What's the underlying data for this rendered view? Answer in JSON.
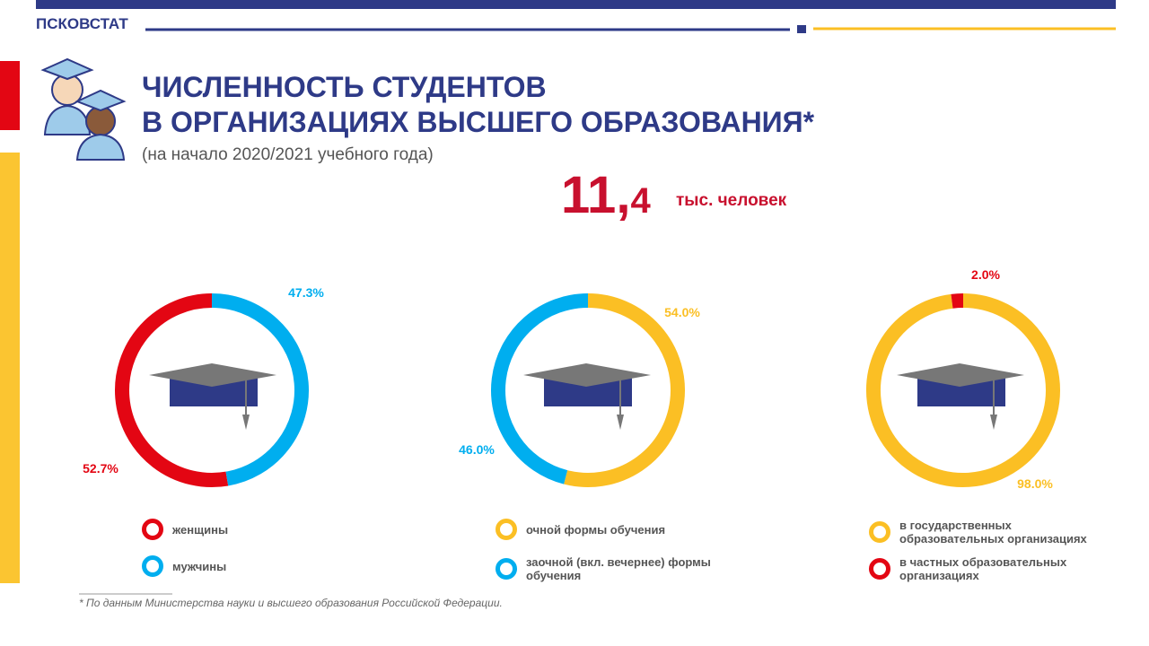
{
  "header": {
    "org": "ПСКОВСТАТ"
  },
  "title": [
    "ЧИСЛЕННОСТЬ СТУДЕНТОВ",
    "В ОРГАНИЗАЦИЯХ ВЫСШЕГО ОБРАЗОВАНИЯ*"
  ],
  "subtitle": "(на начало 2020/2021 учебного года)",
  "total": {
    "value": 11.4,
    "label": "11,4"
  },
  "total_unit": "тыс. человек",
  "footnote": "* По данным Министерства науки и высшего образования Российской Федерации.",
  "chart_data": [
    {
      "type": "pie",
      "direction": "counterclockwise",
      "categories": [
        "женщины",
        "мужчины"
      ],
      "values": [
        52.7,
        47.3
      ],
      "value_labels": [
        "52.7%",
        "47.3%"
      ],
      "colors": [
        "#e30613",
        "#00aeef"
      ]
    },
    {
      "type": "pie",
      "direction": "clockwise",
      "categories": [
        "очной формы обучения",
        "заочной (вкл. вечернее) формы обучения"
      ],
      "values": [
        54.0,
        46.0
      ],
      "value_labels": [
        "54.0%",
        "46.0%"
      ],
      "colors": [
        "#fbbf24",
        "#00aeef"
      ]
    },
    {
      "type": "pie",
      "direction": "clockwise",
      "categories": [
        "в государственных образовательных организациях",
        "в частных образовательных организациях"
      ],
      "values": [
        98.0,
        2.0
      ],
      "value_labels": [
        "98.0%",
        "2.0%"
      ],
      "colors": [
        "#fbbf24",
        "#e30613"
      ]
    }
  ]
}
